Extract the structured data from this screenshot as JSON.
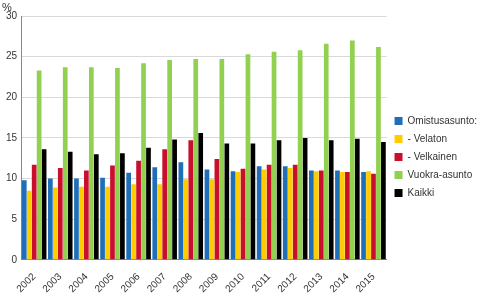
{
  "chart_data": {
    "type": "bar",
    "y_label": "%",
    "categories": [
      "2002",
      "2003",
      "2004",
      "2005",
      "2006",
      "2007",
      "2008",
      "2009",
      "2010",
      "2011",
      "2012",
      "2013",
      "2014",
      "2015"
    ],
    "series": [
      {
        "name": "Omistusasunto:",
        "color": "#1f6fb8",
        "values": [
          9.8,
          10.0,
          10.0,
          10.1,
          10.7,
          11.4,
          12.0,
          11.1,
          10.9,
          11.5,
          11.5,
          11.0,
          11.0,
          10.8
        ]
      },
      {
        "name": "- Velaton",
        "color": "#ffcc00",
        "values": [
          8.5,
          8.9,
          9.0,
          9.0,
          9.3,
          9.3,
          9.9,
          9.9,
          10.8,
          11.1,
          11.3,
          10.9,
          10.8,
          10.9
        ]
      },
      {
        "name": "- Velkainen",
        "color": "#c8102e",
        "values": [
          11.7,
          11.3,
          11.0,
          11.6,
          12.2,
          13.6,
          14.7,
          12.4,
          11.2,
          11.7,
          11.7,
          11.0,
          10.8,
          10.6
        ]
      },
      {
        "name": "Vuokra-asunto",
        "color": "#92d050",
        "values": [
          23.3,
          23.7,
          23.7,
          23.6,
          24.2,
          24.6,
          24.7,
          24.7,
          25.3,
          25.6,
          25.8,
          26.6,
          27.0,
          26.2
        ]
      },
      {
        "name": "Kaikki",
        "color": "#000000",
        "values": [
          13.6,
          13.3,
          13.0,
          13.1,
          13.8,
          14.8,
          15.6,
          14.3,
          14.3,
          14.7,
          15.0,
          14.7,
          14.9,
          14.5
        ]
      }
    ],
    "ylim": [
      0,
      30
    ],
    "yticks": [
      0,
      5,
      10,
      15,
      20,
      25,
      30
    ],
    "grid": true,
    "legend": "right"
  }
}
